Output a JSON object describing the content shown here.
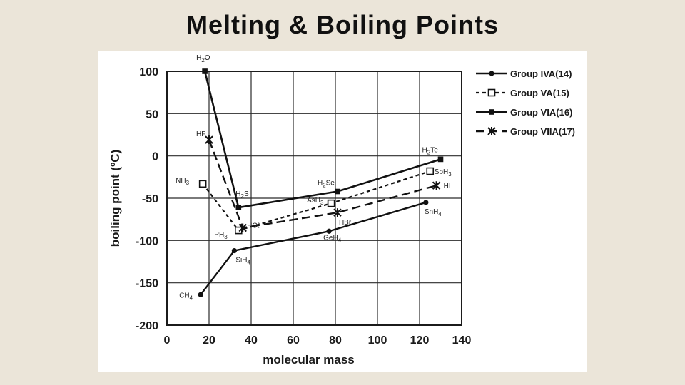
{
  "slide": {
    "title": "Melting & Boiling Points"
  },
  "chart_data": {
    "type": "line",
    "title": "Melting & Boiling Points",
    "xlabel": "molecular mass",
    "ylabel": "boiling point (ºC)",
    "xlim": [
      0,
      140
    ],
    "ylim": [
      -200,
      100
    ],
    "xticks": [
      "0",
      "20",
      "40",
      "60",
      "80",
      "100",
      "120",
      "140"
    ],
    "yticks": [
      "100",
      "50",
      "0",
      "-50",
      "-100",
      "-150",
      "-200"
    ],
    "grid": true,
    "legend_position": "right",
    "series": [
      {
        "name": "Group IVA(14)",
        "style": "solid-dot",
        "points": [
          {
            "label": "CH",
            "sub": "4",
            "x": 16,
            "y": -164
          },
          {
            "label": "SiH",
            "sub": "4",
            "x": 32,
            "y": -112
          },
          {
            "label": "GeH",
            "sub": "4",
            "x": 77,
            "y": -89
          },
          {
            "label": "SnH",
            "sub": "4",
            "x": 123,
            "y": -55
          }
        ]
      },
      {
        "name": "Group VA(15)",
        "style": "dashed-square",
        "points": [
          {
            "label": "NH",
            "sub": "3",
            "x": 17,
            "y": -33
          },
          {
            "label": "PH",
            "sub": "3",
            "x": 34,
            "y": -88
          },
          {
            "label": "AsH",
            "sub": "3",
            "x": 78,
            "y": -56
          },
          {
            "label": "SbH",
            "sub": "3",
            "x": 125,
            "y": -18
          }
        ]
      },
      {
        "name": "Group VIA(16)",
        "style": "solid-square",
        "points": [
          {
            "label": "H",
            "sub": "2",
            "suffix": "O",
            "x": 18,
            "y": 100
          },
          {
            "label": "H",
            "sub": "2",
            "suffix": "S",
            "x": 34,
            "y": -61
          },
          {
            "label": "H",
            "sub": "2",
            "suffix": "Se",
            "x": 81,
            "y": -42
          },
          {
            "label": "H",
            "sub": "2",
            "suffix": "Te",
            "x": 130,
            "y": -4
          }
        ]
      },
      {
        "name": "Group VIIA(17)",
        "style": "longdash-star",
        "points": [
          {
            "label": "HF",
            "sub": "",
            "x": 20,
            "y": 19
          },
          {
            "label": "HCℓ",
            "sub": "",
            "x": 36,
            "y": -85
          },
          {
            "label": "HBr",
            "sub": "",
            "x": 81,
            "y": -67
          },
          {
            "label": "HI",
            "sub": "",
            "x": 128,
            "y": -35
          }
        ]
      }
    ]
  }
}
